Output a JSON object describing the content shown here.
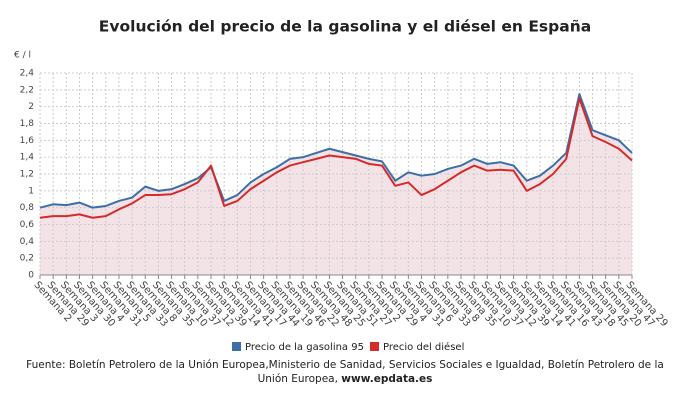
{
  "chart_data": {
    "type": "line",
    "title": "Evolución del precio de la gasolina y el diésel en España",
    "y_label": "€ / l",
    "categories": [
      "Semana 2",
      "Semana 29",
      "Semana 3",
      "Semana 30",
      "Semana 4",
      "Semana 31",
      "Semana 5",
      "Semana 33",
      "Semana 8",
      "Semana 35",
      "Semana 10",
      "Semana 37",
      "Semana 12",
      "Semana 39",
      "Semana 14",
      "Semana 41",
      "Semana 17",
      "Semana 44",
      "Semana 19",
      "Semana 46",
      "Semana 22",
      "Semana 48",
      "Semana 25",
      "Semana 51",
      "Semana 27",
      "Semana 2",
      "Semana 29",
      "Semana 4",
      "Semana 31",
      "Semana 6",
      "Semana 33",
      "Semana 8",
      "Semana 35",
      "Semana 10",
      "Semana 37",
      "Semana 12",
      "Semana 39",
      "Semana 14",
      "Semana 41",
      "Semana 16",
      "Semana 43",
      "Semana 18",
      "Semana 45",
      "Semana 20",
      "Semana 47",
      "Semana 29"
    ],
    "series": [
      {
        "name": "Precio de la gasolina 95",
        "color": "#3b6fa6",
        "values": [
          0.8,
          0.84,
          0.83,
          0.86,
          0.8,
          0.82,
          0.88,
          0.92,
          1.05,
          1.0,
          1.02,
          1.08,
          1.15,
          1.28,
          0.88,
          0.95,
          1.1,
          1.2,
          1.28,
          1.38,
          1.4,
          1.45,
          1.5,
          1.46,
          1.42,
          1.38,
          1.35,
          1.12,
          1.22,
          1.18,
          1.2,
          1.26,
          1.3,
          1.38,
          1.32,
          1.34,
          1.3,
          1.12,
          1.18,
          1.3,
          1.45,
          2.15,
          1.72,
          1.66,
          1.6,
          1.45
        ]
      },
      {
        "name": "Precio del diésel",
        "color": "#d42b2b",
        "values": [
          0.68,
          0.7,
          0.7,
          0.72,
          0.68,
          0.7,
          0.78,
          0.85,
          0.95,
          0.95,
          0.96,
          1.02,
          1.1,
          1.3,
          0.82,
          0.88,
          1.02,
          1.12,
          1.22,
          1.3,
          1.34,
          1.38,
          1.42,
          1.4,
          1.38,
          1.32,
          1.3,
          1.06,
          1.1,
          0.95,
          1.02,
          1.12,
          1.22,
          1.3,
          1.24,
          1.25,
          1.24,
          1.0,
          1.08,
          1.2,
          1.38,
          2.1,
          1.65,
          1.58,
          1.5,
          1.36
        ]
      }
    ],
    "ylim": [
      0,
      2.4
    ],
    "yticks": [
      0,
      {
        "value": 0.2,
        "label": "0,2"
      },
      {
        "value": 0.4,
        "label": "0,4"
      },
      {
        "value": 0.6,
        "label": "0,6"
      },
      {
        "value": 0.8,
        "label": "0,8"
      },
      1,
      {
        "value": 1.2,
        "label": "1,2"
      },
      {
        "value": 1.4,
        "label": "1,4"
      },
      {
        "value": 1.6,
        "label": "1,6"
      },
      {
        "value": 1.8,
        "label": "1,8"
      },
      2,
      {
        "value": 2.2,
        "label": "2,2"
      },
      {
        "value": 2.4,
        "label": "2,4"
      }
    ],
    "grid": true,
    "area_color": "#f3e3e7",
    "legend_position": "bottom",
    "source": "Fuente: Boletín Petrolero de la Unión Europea,Ministerio de Sanidad, Servicios Sociales e Igualdad, Boletín Petrolero de la Unión Europea,",
    "source_link": "www.epdata.es"
  }
}
